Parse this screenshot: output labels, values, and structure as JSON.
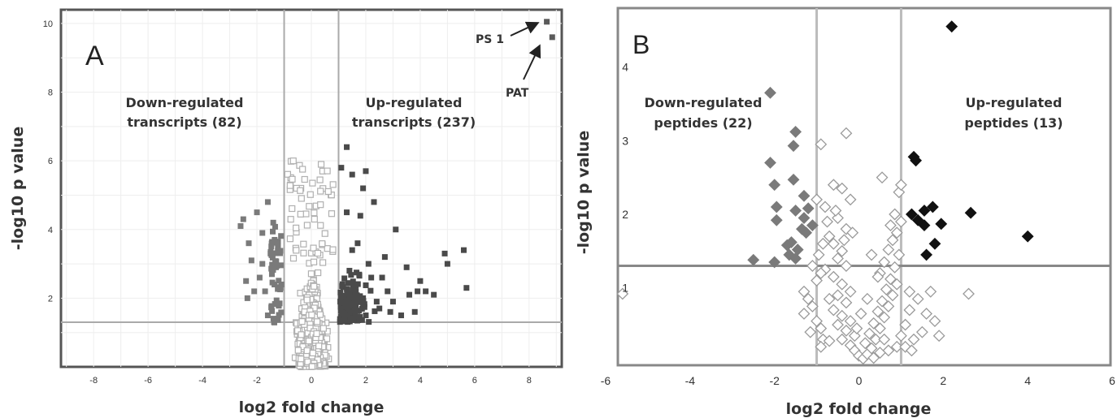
{
  "chart_data": [
    {
      "type": "scatter",
      "panel_letter": "A",
      "xlabel": "log2 fold change",
      "ylabel": "-log10 p value",
      "xlim": [
        -9.2,
        9.2
      ],
      "ylim": [
        0,
        10.4
      ],
      "xticks": [
        "-8",
        "-6",
        "-4",
        "-2",
        "0",
        "2",
        "4",
        "6",
        "8"
      ],
      "yticks": [
        "2",
        "4",
        "6",
        "8",
        "10"
      ],
      "grid": true,
      "threshold_x": [
        -1,
        1
      ],
      "threshold_y": 1.3,
      "annotations": {
        "down": [
          "Down-regulated",
          "transcripts  (82)"
        ],
        "up": [
          "Up-regulated",
          "transcripts  (237)"
        ],
        "ps1": "PS 1",
        "pat": "PAT"
      },
      "colors": {
        "down": "#7a7a7a",
        "up": "#4a4a4a",
        "ns_edge": "#b0b0b0",
        "outlier": "#5a5a5a"
      },
      "outliers": [
        {
          "name": "PS 1",
          "x": 8.65,
          "y": 10.05
        },
        {
          "name": "PAT",
          "x": 8.85,
          "y": 9.6
        }
      ],
      "series": [
        {
          "name": "down-regulated",
          "points": [
            [
              -2.5,
              4.3
            ],
            [
              -2.6,
              4.1
            ],
            [
              -2.3,
              3.6
            ],
            [
              -2.0,
              4.5
            ],
            [
              -1.8,
              3.9
            ],
            [
              -1.6,
              4.8
            ],
            [
              -1.4,
              4.2
            ],
            [
              -2.2,
              3.1
            ],
            [
              -1.9,
              2.6
            ],
            [
              -1.7,
              2.2
            ],
            [
              -1.5,
              3.3
            ],
            [
              -1.3,
              2.9
            ],
            [
              -2.4,
              2.5
            ],
            [
              -1.2,
              1.8
            ],
            [
              -1.1,
              2.4
            ],
            [
              -1.6,
              1.5
            ],
            [
              -2.1,
              2.2
            ],
            [
              -1.35,
              3.7
            ],
            [
              -1.8,
              3.0
            ],
            [
              -1.25,
              1.4
            ],
            [
              -2.35,
              2.0
            ],
            [
              -1.45,
              2.7
            ]
          ]
        },
        {
          "name": "up-regulated",
          "points": [
            [
              1.1,
              5.8
            ],
            [
              1.5,
              5.6
            ],
            [
              1.3,
              6.4
            ],
            [
              2.0,
              5.7
            ],
            [
              2.3,
              4.8
            ],
            [
              1.8,
              4.4
            ],
            [
              3.1,
              4.0
            ],
            [
              1.5,
              3.4
            ],
            [
              2.7,
              3.2
            ],
            [
              2.2,
              2.6
            ],
            [
              3.5,
              2.9
            ],
            [
              4.0,
              2.5
            ],
            [
              4.2,
              2.2
            ],
            [
              4.9,
              3.3
            ],
            [
              5.0,
              3.0
            ],
            [
              5.6,
              3.4
            ],
            [
              5.7,
              2.3
            ],
            [
              1.9,
              2.0
            ],
            [
              2.5,
              1.7
            ],
            [
              3.0,
              1.9
            ],
            [
              3.3,
              1.5
            ],
            [
              2.8,
              2.2
            ],
            [
              3.8,
              1.6
            ],
            [
              1.2,
              1.6
            ],
            [
              1.6,
              1.4
            ],
            [
              2.4,
              1.9
            ],
            [
              1.4,
              2.8
            ],
            [
              2.9,
              1.6
            ],
            [
              1.7,
              3.6
            ],
            [
              2.6,
              2.6
            ],
            [
              1.3,
              4.5
            ],
            [
              2.1,
              3.0
            ],
            [
              1.9,
              5.2
            ],
            [
              3.6,
              2.1
            ],
            [
              4.5,
              2.1
            ],
            [
              3.9,
              2.2
            ],
            [
              2.0,
              1.5
            ]
          ]
        }
      ]
    },
    {
      "type": "scatter",
      "panel_letter": "B",
      "xlabel": "log2 fold change",
      "ylabel": "-log10 p value",
      "xlim": [
        -6,
        6
      ],
      "ylim": [
        -0.05,
        4.8
      ],
      "xticks": [
        "-6",
        "-4",
        "-2",
        "0",
        "2",
        "4",
        "6"
      ],
      "yticks": [
        "1",
        "2",
        "3",
        "4"
      ],
      "grid": false,
      "threshold_x": [
        -1,
        1
      ],
      "threshold_y": 1.3,
      "annotations": {
        "down": [
          "Down-regulated",
          "peptides (22)"
        ],
        "up": [
          "Up-regulated",
          "peptides (13)"
        ]
      },
      "colors": {
        "down": "#7a7a7a",
        "up": "#111111",
        "ns_edge": "#9a9a9a"
      },
      "series": [
        {
          "name": "down-regulated",
          "points": [
            [
              -2.1,
              3.65
            ],
            [
              -1.5,
              3.12
            ],
            [
              -1.55,
              2.93
            ],
            [
              -2.1,
              2.7
            ],
            [
              -1.55,
              2.47
            ],
            [
              -2.0,
              2.4
            ],
            [
              -1.3,
              2.25
            ],
            [
              -1.95,
              2.1
            ],
            [
              -1.2,
              2.08
            ],
            [
              -1.5,
              2.05
            ],
            [
              -1.95,
              1.92
            ],
            [
              -1.35,
              1.8
            ],
            [
              -1.6,
              1.62
            ],
            [
              -1.7,
              1.58
            ],
            [
              -1.45,
              1.52
            ],
            [
              -1.65,
              1.45
            ],
            [
              -1.5,
              1.4
            ],
            [
              -2.5,
              1.38
            ],
            [
              -2.0,
              1.35
            ],
            [
              -1.3,
              1.95
            ],
            [
              -1.25,
              1.75
            ],
            [
              -1.1,
              1.85
            ]
          ]
        },
        {
          "name": "up-regulated",
          "points": [
            [
              2.2,
              4.55
            ],
            [
              1.3,
              2.78
            ],
            [
              1.35,
              2.73
            ],
            [
              1.55,
              2.05
            ],
            [
              1.75,
              2.1
            ],
            [
              2.65,
              2.02
            ],
            [
              1.4,
              1.92
            ],
            [
              1.55,
              1.85
            ],
            [
              1.95,
              1.87
            ],
            [
              4.0,
              1.7
            ],
            [
              1.8,
              1.6
            ],
            [
              1.6,
              1.45
            ],
            [
              1.25,
              2.0
            ]
          ]
        },
        {
          "name": "not significant",
          "points": [
            [
              -5.6,
              0.92
            ],
            [
              -0.3,
              3.1
            ],
            [
              -0.9,
              2.95
            ],
            [
              2.6,
              0.92
            ],
            [
              1.0,
              1.9
            ],
            [
              -0.6,
              2.4
            ],
            [
              -0.4,
              2.35
            ],
            [
              -0.2,
              2.2
            ],
            [
              -0.8,
              2.1
            ],
            [
              -0.5,
              1.95
            ],
            [
              -0.3,
              1.8
            ],
            [
              -0.7,
              1.7
            ],
            [
              -0.6,
              1.6
            ],
            [
              -0.4,
              1.5
            ],
            [
              -0.5,
              1.4
            ],
            [
              -0.3,
              1.3
            ],
            [
              -0.8,
              1.25
            ],
            [
              -0.6,
              1.15
            ],
            [
              -0.4,
              1.05
            ],
            [
              -0.2,
              0.95
            ],
            [
              -0.5,
              0.9
            ],
            [
              -0.7,
              0.85
            ],
            [
              -0.3,
              0.8
            ],
            [
              -0.6,
              0.7
            ],
            [
              -0.4,
              0.62
            ],
            [
              -0.2,
              0.55
            ],
            [
              -0.5,
              0.5
            ],
            [
              -0.3,
              0.42
            ],
            [
              -0.1,
              0.35
            ],
            [
              -0.4,
              0.3
            ],
            [
              -0.2,
              0.22
            ],
            [
              -0.1,
              0.15
            ],
            [
              0.0,
              0.08
            ],
            [
              0.1,
              0.04
            ],
            [
              0.2,
              0.1
            ],
            [
              0.3,
              0.18
            ],
            [
              0.15,
              0.25
            ],
            [
              0.4,
              0.3
            ],
            [
              0.25,
              0.38
            ],
            [
              0.5,
              0.45
            ],
            [
              0.35,
              0.52
            ],
            [
              0.6,
              0.6
            ],
            [
              0.45,
              0.68
            ],
            [
              0.7,
              0.75
            ],
            [
              0.55,
              0.82
            ],
            [
              0.8,
              0.9
            ],
            [
              0.65,
              0.98
            ],
            [
              0.9,
              1.05
            ],
            [
              0.75,
              1.12
            ],
            [
              0.5,
              1.2
            ],
            [
              0.85,
              1.28
            ],
            [
              0.6,
              1.35
            ],
            [
              0.95,
              1.45
            ],
            [
              0.7,
              1.52
            ],
            [
              0.8,
              1.65
            ],
            [
              0.9,
              1.75
            ],
            [
              0.75,
              1.85
            ],
            [
              0.85,
              2.0
            ],
            [
              0.95,
              2.3
            ],
            [
              1.0,
              2.4
            ],
            [
              0.55,
              2.5
            ],
            [
              1.2,
              0.95
            ],
            [
              1.4,
              0.85
            ],
            [
              1.6,
              0.65
            ],
            [
              1.8,
              0.55
            ],
            [
              1.5,
              0.4
            ],
            [
              1.9,
              0.35
            ],
            [
              1.3,
              0.3
            ],
            [
              1.1,
              0.5
            ],
            [
              1.2,
              0.7
            ],
            [
              1.7,
              0.95
            ],
            [
              -1.3,
              0.95
            ],
            [
              -1.2,
              0.85
            ],
            [
              -1.1,
              0.75
            ],
            [
              -1.3,
              0.65
            ],
            [
              -1.0,
              0.55
            ],
            [
              -0.9,
              0.45
            ],
            [
              -1.15,
              0.4
            ],
            [
              -0.85,
              0.3
            ],
            [
              -0.7,
              0.28
            ],
            [
              -0.9,
              0.2
            ],
            [
              -1.0,
              1.1
            ],
            [
              -0.9,
              1.2
            ],
            [
              -1.1,
              1.3
            ],
            [
              -0.95,
              1.45
            ],
            [
              -0.85,
              1.6
            ],
            [
              -0.75,
              1.9
            ],
            [
              -1.0,
              2.2
            ],
            [
              -0.55,
              2.05
            ],
            [
              -0.35,
              1.65
            ],
            [
              -0.15,
              1.75
            ],
            [
              0.3,
              1.45
            ],
            [
              0.45,
              1.15
            ],
            [
              0.2,
              0.85
            ],
            [
              0.05,
              0.65
            ],
            [
              -0.05,
              0.45
            ],
            [
              0.6,
              0.3
            ],
            [
              0.7,
              0.15
            ],
            [
              0.9,
              0.2
            ],
            [
              1.0,
              0.35
            ],
            [
              1.1,
              0.2
            ],
            [
              1.25,
              0.15
            ],
            [
              0.35,
              0.05
            ],
            [
              0.5,
              0.12
            ]
          ]
        }
      ]
    }
  ]
}
